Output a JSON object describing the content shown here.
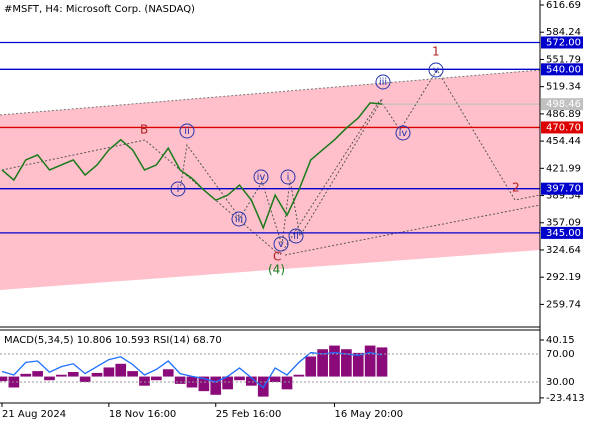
{
  "chart_data": {
    "type": "line",
    "title": "#MSFT, H4:  Microsoft Corp. (NASDAQ)",
    "color": "#1a7a1a",
    "categories": [
      "21 Aug 2024",
      null,
      null,
      null,
      null,
      null,
      null,
      null,
      null,
      "18 Nov 16:00",
      null,
      null,
      null,
      null,
      null,
      null,
      null,
      null,
      "25 Feb 16:00",
      null,
      null,
      null,
      null,
      null,
      null,
      null,
      null,
      null,
      "16 May 20:00",
      null,
      null,
      null,
      null
    ],
    "values": [
      420,
      408,
      432,
      438,
      420,
      426,
      432,
      414,
      426,
      444,
      456,
      444,
      420,
      426,
      446,
      420,
      410,
      396,
      384,
      390,
      402,
      384,
      351,
      390,
      366,
      396,
      432,
      444,
      456,
      470,
      482,
      500,
      498.46
    ],
    "ylim": [
      232.8,
      622.65
    ],
    "yticks": [
      616.69,
      584.24,
      551.79,
      519.34,
      486.89,
      454.44,
      421.99,
      389.54,
      357.09,
      324.64,
      292.19,
      259.74
    ],
    "levels": [
      {
        "value": 572,
        "label": "572.00",
        "color": "#0000cc"
      },
      {
        "value": 540,
        "label": "540.00",
        "color": "#0000cc"
      },
      {
        "value": 470.7,
        "label": "470.70",
        "color": "#dd0000"
      },
      {
        "value": 397.7,
        "label": "397.70",
        "color": "#0000cc"
      },
      {
        "value": 345,
        "label": "345.00",
        "color": "#0000cc"
      }
    ],
    "last_price": {
      "value": 498.46,
      "label": "498.46"
    },
    "annotations": [
      "1",
      "2",
      "B",
      "C",
      "(4)",
      "iii",
      "v",
      "iv",
      "ii",
      "i",
      "iii",
      "iv",
      "i",
      "v",
      "ii"
    ],
    "indicator": {
      "label": "MACD(5,34,5) 10.806 10.593 RSI(14) 68.70",
      "color": "#8b0a7a",
      "rsi_color": "#1e6fff",
      "histogram": [
        -5,
        -12,
        3,
        6,
        -4,
        2,
        5,
        -6,
        4,
        10,
        14,
        6,
        -10,
        -4,
        8,
        -8,
        -12,
        -16,
        -20,
        -14,
        -4,
        -10,
        -22,
        -6,
        -14,
        2,
        22,
        30,
        34,
        30,
        26,
        34,
        32
      ],
      "rsi": [
        45,
        40,
        58,
        60,
        44,
        52,
        56,
        42,
        52,
        62,
        66,
        55,
        40,
        48,
        60,
        42,
        38,
        35,
        30,
        38,
        50,
        36,
        22,
        50,
        40,
        58,
        72,
        70,
        72,
        70,
        68,
        72,
        68.7
      ],
      "macd_ylim": [
        -29,
        47.8
      ],
      "rsi_ylim": [
        0,
        100
      ],
      "macd_ticks": [
        40.15,
        -23.413
      ],
      "rsi_ticks": [
        {
          "value": 70,
          "label": "70.00"
        },
        {
          "value": 30,
          "label": "30.00"
        }
      ]
    }
  }
}
